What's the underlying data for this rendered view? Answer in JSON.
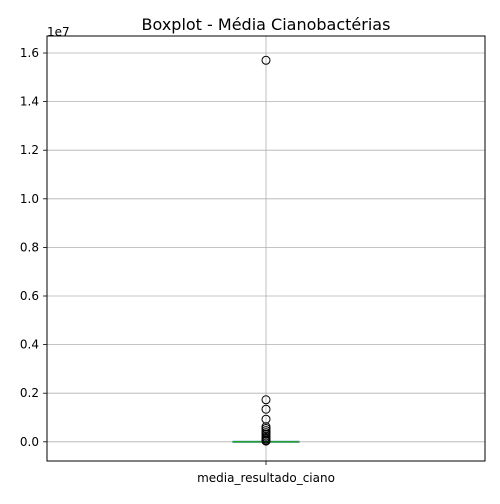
{
  "chart_data": {
    "type": "boxplot",
    "title": "Boxplot - Média Cianobactérias",
    "offset_label": "1e7",
    "categories": [
      "media_resultado_ciano"
    ],
    "ylim": [
      -0.079,
      1.67
    ],
    "yticks": [
      0.0,
      0.2,
      0.4,
      0.6,
      0.8,
      1.0,
      1.2,
      1.4,
      1.6
    ],
    "ytick_labels": [
      "0.0",
      "0.2",
      "0.4",
      "0.6",
      "0.8",
      "1.0",
      "1.2",
      "1.4",
      "1.6"
    ],
    "grid": true,
    "box": {
      "q1": 0.0,
      "median": 0.0,
      "q3": 0.0,
      "whisker_low": 0.0,
      "whisker_high": 0.0
    },
    "outliers": [
      1.57,
      0.173,
      0.134,
      0.093,
      0.062,
      0.055,
      0.046,
      0.038,
      0.031,
      0.024,
      0.018,
      0.012,
      0.007,
      0.003
    ],
    "colors": {
      "box": "#1f77b4",
      "median": "#2ca02c",
      "grid": "#b0b0b0",
      "outlier_edge": "#000000"
    }
  }
}
